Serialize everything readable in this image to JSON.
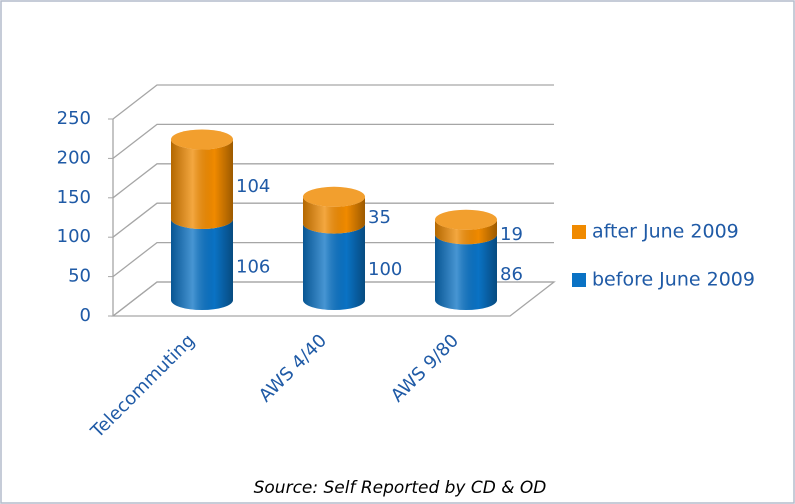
{
  "chart_data": {
    "type": "bar3d_stacked",
    "categories": [
      "Telecommuting",
      "AWS 4/40",
      "AWS 9/80"
    ],
    "series": [
      {
        "name": "before June 2009",
        "color": "#0a72c4",
        "values": [
          106,
          100,
          86
        ]
      },
      {
        "name": "after June 2009",
        "color": "#f08a00",
        "values": [
          104,
          35,
          19
        ]
      }
    ],
    "ylim": [
      0,
      250
    ],
    "yticks": [
      0,
      50,
      100,
      150,
      200,
      250
    ],
    "grid": true,
    "legend": "right",
    "annotation": "Source: Self Reported by CD & OD"
  }
}
